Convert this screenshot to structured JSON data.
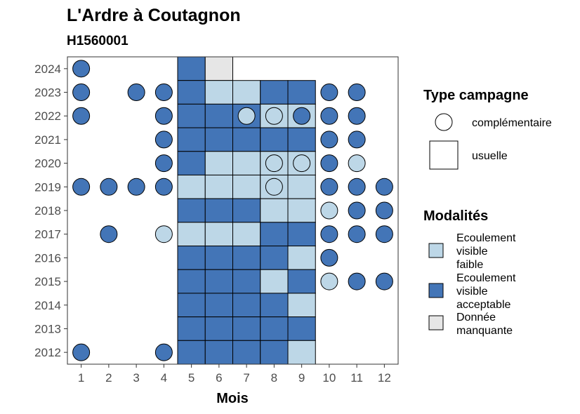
{
  "chart_data": {
    "type": "heatmap",
    "title": "L'Ardre à Coutagnon",
    "subtitle": "H1560001",
    "xlabel": "Mois",
    "ylabel": "",
    "x_ticks": [
      1,
      2,
      3,
      4,
      5,
      6,
      7,
      8,
      9,
      10,
      11,
      12
    ],
    "y_ticks": [
      2012,
      2013,
      2014,
      2015,
      2016,
      2017,
      2018,
      2019,
      2020,
      2021,
      2022,
      2023,
      2024
    ],
    "xlim": [
      0.5,
      12.5
    ],
    "ylim": [
      2011.5,
      2024.5
    ],
    "grid": false,
    "colors": {
      "faible": "#bdd7e7",
      "acceptable": "#4375b7",
      "manquante": "#e6e6e6",
      "border": "#000000",
      "tick": "#4d4d4d"
    },
    "legend_shape": {
      "title": "Type campagne",
      "entries": [
        {
          "key": "complementaire",
          "label": "complémentaire",
          "shape": "circle"
        },
        {
          "key": "usuelle",
          "label": "usuelle",
          "shape": "square"
        }
      ]
    },
    "legend_fill": {
      "title": "Modalités",
      "entries": [
        {
          "key": "faible",
          "lines": [
            "Ecoulement",
            "visible",
            "faible"
          ]
        },
        {
          "key": "acceptable",
          "lines": [
            "Ecoulement",
            "visible",
            "acceptable"
          ]
        },
        {
          "key": "manquante",
          "lines": [
            "Donnée",
            "manquante"
          ]
        }
      ]
    },
    "usuelle_squares": [
      {
        "year": 2024,
        "month": 5,
        "mod": "acceptable"
      },
      {
        "year": 2024,
        "month": 6,
        "mod": "manquante"
      },
      {
        "year": 2023,
        "month": 5,
        "mod": "acceptable"
      },
      {
        "year": 2023,
        "month": 6,
        "mod": "faible"
      },
      {
        "year": 2023,
        "month": 7,
        "mod": "faible"
      },
      {
        "year": 2023,
        "month": 8,
        "mod": "acceptable"
      },
      {
        "year": 2023,
        "month": 9,
        "mod": "acceptable"
      },
      {
        "year": 2022,
        "month": 5,
        "mod": "acceptable"
      },
      {
        "year": 2022,
        "month": 6,
        "mod": "acceptable"
      },
      {
        "year": 2022,
        "month": 7,
        "mod": "acceptable"
      },
      {
        "year": 2022,
        "month": 8,
        "mod": "faible"
      },
      {
        "year": 2022,
        "month": 9,
        "mod": "faible"
      },
      {
        "year": 2021,
        "month": 5,
        "mod": "acceptable"
      },
      {
        "year": 2021,
        "month": 6,
        "mod": "acceptable"
      },
      {
        "year": 2021,
        "month": 7,
        "mod": "acceptable"
      },
      {
        "year": 2021,
        "month": 8,
        "mod": "acceptable"
      },
      {
        "year": 2021,
        "month": 9,
        "mod": "acceptable"
      },
      {
        "year": 2020,
        "month": 5,
        "mod": "acceptable"
      },
      {
        "year": 2020,
        "month": 6,
        "mod": "faible"
      },
      {
        "year": 2020,
        "month": 7,
        "mod": "faible"
      },
      {
        "year": 2020,
        "month": 8,
        "mod": "faible"
      },
      {
        "year": 2020,
        "month": 9,
        "mod": "faible"
      },
      {
        "year": 2019,
        "month": 5,
        "mod": "faible"
      },
      {
        "year": 2019,
        "month": 6,
        "mod": "faible"
      },
      {
        "year": 2019,
        "month": 7,
        "mod": "faible"
      },
      {
        "year": 2019,
        "month": 8,
        "mod": "faible"
      },
      {
        "year": 2019,
        "month": 9,
        "mod": "faible"
      },
      {
        "year": 2018,
        "month": 5,
        "mod": "acceptable"
      },
      {
        "year": 2018,
        "month": 6,
        "mod": "acceptable"
      },
      {
        "year": 2018,
        "month": 7,
        "mod": "acceptable"
      },
      {
        "year": 2018,
        "month": 8,
        "mod": "faible"
      },
      {
        "year": 2018,
        "month": 9,
        "mod": "faible"
      },
      {
        "year": 2017,
        "month": 5,
        "mod": "faible"
      },
      {
        "year": 2017,
        "month": 6,
        "mod": "faible"
      },
      {
        "year": 2017,
        "month": 7,
        "mod": "faible"
      },
      {
        "year": 2017,
        "month": 8,
        "mod": "acceptable"
      },
      {
        "year": 2017,
        "month": 9,
        "mod": "acceptable"
      },
      {
        "year": 2016,
        "month": 5,
        "mod": "acceptable"
      },
      {
        "year": 2016,
        "month": 6,
        "mod": "acceptable"
      },
      {
        "year": 2016,
        "month": 7,
        "mod": "acceptable"
      },
      {
        "year": 2016,
        "month": 8,
        "mod": "acceptable"
      },
      {
        "year": 2016,
        "month": 9,
        "mod": "faible"
      },
      {
        "year": 2015,
        "month": 5,
        "mod": "acceptable"
      },
      {
        "year": 2015,
        "month": 6,
        "mod": "acceptable"
      },
      {
        "year": 2015,
        "month": 7,
        "mod": "acceptable"
      },
      {
        "year": 2015,
        "month": 8,
        "mod": "faible"
      },
      {
        "year": 2015,
        "month": 9,
        "mod": "acceptable"
      },
      {
        "year": 2014,
        "month": 5,
        "mod": "acceptable"
      },
      {
        "year": 2014,
        "month": 6,
        "mod": "acceptable"
      },
      {
        "year": 2014,
        "month": 7,
        "mod": "acceptable"
      },
      {
        "year": 2014,
        "month": 8,
        "mod": "acceptable"
      },
      {
        "year": 2014,
        "month": 9,
        "mod": "faible"
      },
      {
        "year": 2013,
        "month": 5,
        "mod": "acceptable"
      },
      {
        "year": 2013,
        "month": 6,
        "mod": "acceptable"
      },
      {
        "year": 2013,
        "month": 7,
        "mod": "acceptable"
      },
      {
        "year": 2013,
        "month": 8,
        "mod": "acceptable"
      },
      {
        "year": 2013,
        "month": 9,
        "mod": "acceptable"
      },
      {
        "year": 2012,
        "month": 5,
        "mod": "acceptable"
      },
      {
        "year": 2012,
        "month": 6,
        "mod": "acceptable"
      },
      {
        "year": 2012,
        "month": 7,
        "mod": "acceptable"
      },
      {
        "year": 2012,
        "month": 8,
        "mod": "acceptable"
      },
      {
        "year": 2012,
        "month": 9,
        "mod": "faible"
      }
    ],
    "complementaire_points": [
      {
        "year": 2024,
        "month": 1,
        "mod": "acceptable"
      },
      {
        "year": 2023,
        "month": 1,
        "mod": "acceptable"
      },
      {
        "year": 2023,
        "month": 3,
        "mod": "acceptable"
      },
      {
        "year": 2023,
        "month": 4,
        "mod": "acceptable"
      },
      {
        "year": 2023,
        "month": 10,
        "mod": "acceptable"
      },
      {
        "year": 2023,
        "month": 11,
        "mod": "acceptable"
      },
      {
        "year": 2022,
        "month": 1,
        "mod": "acceptable"
      },
      {
        "year": 2022,
        "month": 4,
        "mod": "acceptable"
      },
      {
        "year": 2022,
        "month": 7,
        "mod": "faible"
      },
      {
        "year": 2022,
        "month": 8,
        "mod": "faible"
      },
      {
        "year": 2022,
        "month": 9,
        "mod": "acceptable"
      },
      {
        "year": 2022,
        "month": 10,
        "mod": "acceptable"
      },
      {
        "year": 2022,
        "month": 11,
        "mod": "acceptable"
      },
      {
        "year": 2021,
        "month": 4,
        "mod": "acceptable"
      },
      {
        "year": 2021,
        "month": 10,
        "mod": "acceptable"
      },
      {
        "year": 2021,
        "month": 11,
        "mod": "acceptable"
      },
      {
        "year": 2020,
        "month": 4,
        "mod": "acceptable"
      },
      {
        "year": 2020,
        "month": 8,
        "mod": "faible"
      },
      {
        "year": 2020,
        "month": 9,
        "mod": "faible"
      },
      {
        "year": 2020,
        "month": 10,
        "mod": "acceptable"
      },
      {
        "year": 2020,
        "month": 11,
        "mod": "faible"
      },
      {
        "year": 2019,
        "month": 1,
        "mod": "acceptable"
      },
      {
        "year": 2019,
        "month": 2,
        "mod": "acceptable"
      },
      {
        "year": 2019,
        "month": 3,
        "mod": "acceptable"
      },
      {
        "year": 2019,
        "month": 4,
        "mod": "acceptable"
      },
      {
        "year": 2019,
        "month": 8,
        "mod": "faible"
      },
      {
        "year": 2019,
        "month": 10,
        "mod": "acceptable"
      },
      {
        "year": 2019,
        "month": 11,
        "mod": "acceptable"
      },
      {
        "year": 2019,
        "month": 12,
        "mod": "acceptable"
      },
      {
        "year": 2018,
        "month": 10,
        "mod": "faible"
      },
      {
        "year": 2018,
        "month": 11,
        "mod": "acceptable"
      },
      {
        "year": 2018,
        "month": 12,
        "mod": "acceptable"
      },
      {
        "year": 2017,
        "month": 2,
        "mod": "acceptable"
      },
      {
        "year": 2017,
        "month": 4,
        "mod": "faible"
      },
      {
        "year": 2017,
        "month": 10,
        "mod": "acceptable"
      },
      {
        "year": 2017,
        "month": 11,
        "mod": "acceptable"
      },
      {
        "year": 2017,
        "month": 12,
        "mod": "acceptable"
      },
      {
        "year": 2016,
        "month": 10,
        "mod": "acceptable"
      },
      {
        "year": 2015,
        "month": 10,
        "mod": "faible"
      },
      {
        "year": 2015,
        "month": 11,
        "mod": "acceptable"
      },
      {
        "year": 2015,
        "month": 12,
        "mod": "acceptable"
      },
      {
        "year": 2012,
        "month": 1,
        "mod": "acceptable"
      },
      {
        "year": 2012,
        "month": 4,
        "mod": "acceptable"
      }
    ]
  }
}
